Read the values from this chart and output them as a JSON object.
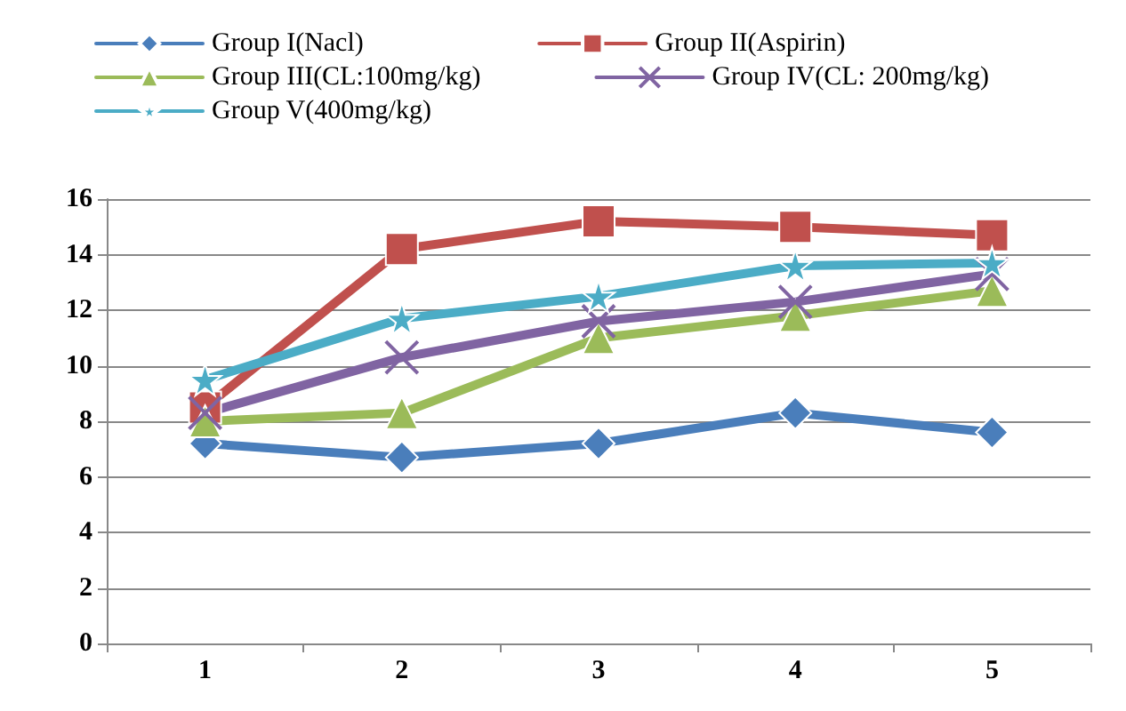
{
  "chart_data": {
    "type": "line",
    "categories": [
      "1",
      "2",
      "3",
      "4",
      "5"
    ],
    "series": [
      {
        "name": "Group I(Nacl)",
        "color": "#4a7ebb",
        "marker": "diamond",
        "values": [
          7.2,
          6.7,
          7.2,
          8.3,
          7.6
        ]
      },
      {
        "name": "Group II(Aspirin)",
        "color": "#c0504d",
        "marker": "square",
        "values": [
          8.5,
          14.2,
          15.2,
          15.0,
          14.7
        ]
      },
      {
        "name": "Group III(CL:100mg/kg)",
        "color": "#9bbb59",
        "marker": "triangle",
        "values": [
          8.0,
          8.3,
          11.0,
          11.8,
          12.7
        ]
      },
      {
        "name": "Group IV(CL: 200mg/kg)",
        "color": "#8064a2",
        "marker": "cross",
        "values": [
          8.3,
          10.3,
          11.6,
          12.3,
          13.3
        ]
      },
      {
        "name": "Group V(400mg/kg)",
        "color": "#4bacc6",
        "marker": "star",
        "values": [
          9.5,
          11.7,
          12.5,
          13.6,
          13.7
        ]
      }
    ],
    "ylim": [
      0,
      16
    ],
    "yticks": [
      0,
      2,
      4,
      6,
      8,
      10,
      12,
      14,
      16
    ],
    "grid": "y",
    "legend": "top"
  }
}
